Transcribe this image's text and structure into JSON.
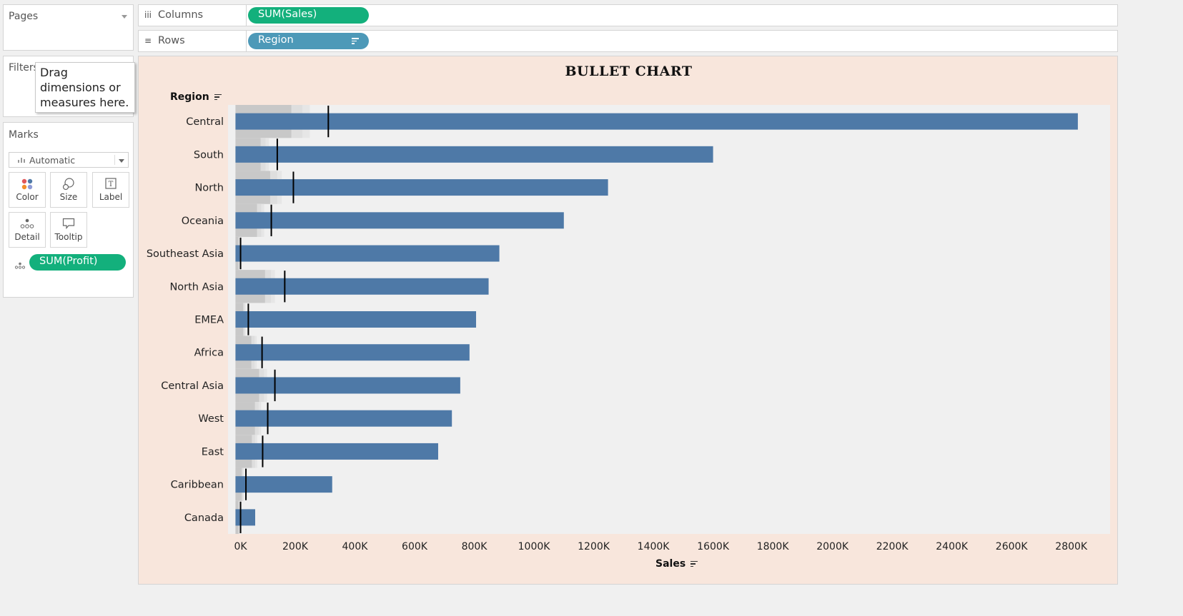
{
  "left_panel": {
    "pages_title": "Pages",
    "filters_title": "Filters",
    "filters_hint": "Drag dimensions or measures here.",
    "marks_title": "Marks",
    "mark_type": "Automatic",
    "mark_buttons": {
      "color": "Color",
      "size": "Size",
      "label": "Label",
      "detail": "Detail",
      "tooltip": "Tooltip"
    },
    "detail_pill": "SUM(Profit)"
  },
  "shelves": {
    "columns_label": "Columns",
    "columns_pill": "SUM(Sales)",
    "rows_label": "Rows",
    "rows_pill": "Region"
  },
  "colors": {
    "bar": "#4e79a7",
    "band_dark": "#c8c8c8",
    "band_light": "#dedede",
    "band_lightest": "#e6e6e6",
    "reference": "#000000",
    "plot_bg": "#f0f0f0",
    "view_bg": "#f8e6dc",
    "pill_green": "#13b07c",
    "pill_blue": "#4d99b8"
  },
  "chart_data": {
    "type": "bar",
    "subtype": "bullet",
    "title": "BULLET CHART",
    "row_header": "Region",
    "xlabel": "Sales",
    "xlim": [
      -25000,
      2930000
    ],
    "x_ticks": [
      0,
      200000,
      400000,
      600000,
      800000,
      1000000,
      1200000,
      1400000,
      1600000,
      1800000,
      2000000,
      2200000,
      2400000,
      2600000,
      2800000
    ],
    "x_tick_labels": [
      "0K",
      "200K",
      "400K",
      "600K",
      "800K",
      "1000K",
      "1200K",
      "1400K",
      "1600K",
      "1800K",
      "2000K",
      "2200K",
      "2400K",
      "2600K",
      "2800K"
    ],
    "grid": false,
    "categories": [
      "Central",
      "South",
      "North",
      "Oceania",
      "Southeast Asia",
      "North Asia",
      "EMEA",
      "Africa",
      "Central Asia",
      "West",
      "East",
      "Caribbean",
      "Canada"
    ],
    "series": [
      {
        "name": "SUM(Sales)",
        "values": [
          2822000,
          1600000,
          1248000,
          1100000,
          884000,
          848000,
          806000,
          784000,
          753000,
          725000,
          679000,
          324000,
          66000
        ]
      },
      {
        "name": "SUM(Profit)",
        "values": [
          311000,
          140000,
          194000,
          120000,
          17000,
          165000,
          43000,
          89000,
          132000,
          108000,
          91000,
          35000,
          17000
        ]
      }
    ],
    "bands": [
      [
        187000,
        249000
      ],
      [
        84000,
        112000
      ],
      [
        116000,
        155000
      ],
      [
        72000,
        96000
      ],
      [
        10000,
        14000
      ],
      [
        99000,
        132000
      ],
      [
        26000,
        34000
      ],
      [
        53000,
        71000
      ],
      [
        79000,
        106000
      ],
      [
        65000,
        86000
      ],
      [
        55000,
        73000
      ],
      [
        21000,
        28000
      ],
      [
        10000,
        14000
      ]
    ]
  }
}
